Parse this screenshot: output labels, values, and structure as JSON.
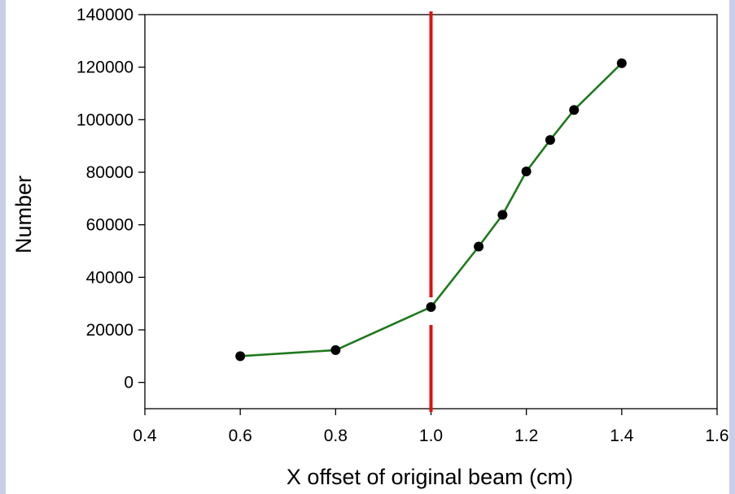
{
  "chart_data": {
    "type": "line",
    "title": "",
    "xlabel": "X offset of original beam (cm)",
    "ylabel": "Number",
    "xlim": [
      0.4,
      1.6
    ],
    "ylim": [
      -10000,
      140000
    ],
    "x_ticks": [
      "0.4",
      "0.6",
      "0.8",
      "1.0",
      "1.2",
      "1.4",
      "1.6"
    ],
    "y_ticks": [
      "0",
      "20000",
      "40000",
      "60000",
      "80000",
      "100000",
      "120000",
      "140000"
    ],
    "grid": false,
    "legend": "none",
    "series": [
      {
        "color": "#1e7a1e",
        "marker_color": "#000000",
        "x": [
          0.6,
          0.8,
          1.0,
          1.1,
          1.15,
          1.2,
          1.25,
          1.3,
          1.4
        ],
        "y": [
          10000,
          12300,
          28700,
          51700,
          63800,
          80300,
          92300,
          103700,
          121500
        ]
      }
    ],
    "reference_line": {
      "orientation": "vertical",
      "x": 1.0,
      "color": "#e01010",
      "style": "broken"
    }
  },
  "colors": {
    "side_stripes": "#c9cde6",
    "axes": "#000000"
  }
}
